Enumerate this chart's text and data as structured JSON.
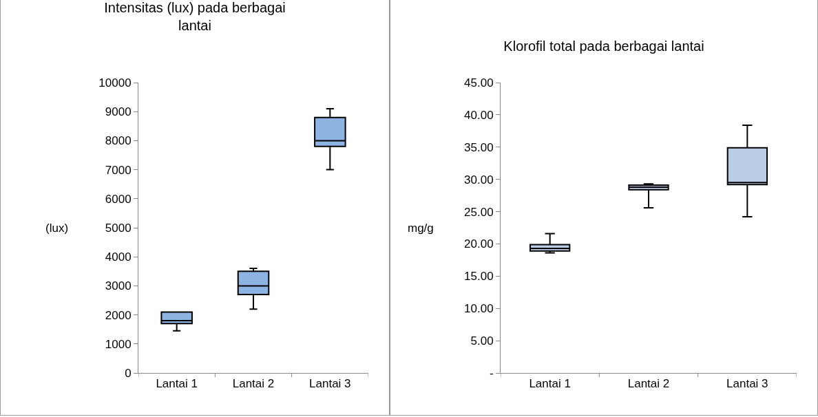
{
  "chart_data": [
    {
      "type": "box",
      "title": "Intensitas (lux) pada berbagai lantai",
      "ylabel": "(lux)",
      "categories": [
        "Lantai 1",
        "Lantai 2",
        "Lantai 3"
      ],
      "color": "#8db3e2",
      "ylim": [
        0,
        10000
      ],
      "yticks": [
        0,
        1000,
        2000,
        3000,
        4000,
        5000,
        6000,
        7000,
        8000,
        9000,
        10000
      ],
      "grid": false,
      "boxes": [
        {
          "low": 1450,
          "q1": 1700,
          "median": 1800,
          "q3": 2100,
          "high": 2100
        },
        {
          "low": 2200,
          "q1": 2700,
          "median": 3000,
          "q3": 3500,
          "high": 3600
        },
        {
          "low": 7000,
          "q1": 7800,
          "median": 8000,
          "q3": 8800,
          "high": 9100
        }
      ]
    },
    {
      "type": "box",
      "title": "Klorofil total pada berbagai lantai",
      "ylabel": "mg/g",
      "categories": [
        "Lantai 1",
        "Lantai 2",
        "Lantai 3"
      ],
      "color": "#b9cde5",
      "ylim": [
        0,
        45
      ],
      "yticks": [
        {
          "value": 0,
          "label": "-"
        },
        {
          "value": 5,
          "label": "5.00"
        },
        {
          "value": 10,
          "label": "10.00"
        },
        {
          "value": 15,
          "label": "15.00"
        },
        {
          "value": 20,
          "label": "20.00"
        },
        {
          "value": 25,
          "label": "25.00"
        },
        {
          "value": 30,
          "label": "30.00"
        },
        {
          "value": 35,
          "label": "35.00"
        },
        {
          "value": 40,
          "label": "40.00"
        },
        {
          "value": 45,
          "label": "45.00"
        }
      ],
      "grid": false,
      "boxes": [
        {
          "low": 18.6,
          "q1": 18.9,
          "median": 19.3,
          "q3": 19.9,
          "high": 21.6
        },
        {
          "low": 25.6,
          "q1": 28.4,
          "median": 28.8,
          "q3": 29.1,
          "high": 29.3
        },
        {
          "low": 24.2,
          "q1": 29.2,
          "median": 29.5,
          "q3": 34.9,
          "high": 38.4
        }
      ]
    }
  ]
}
